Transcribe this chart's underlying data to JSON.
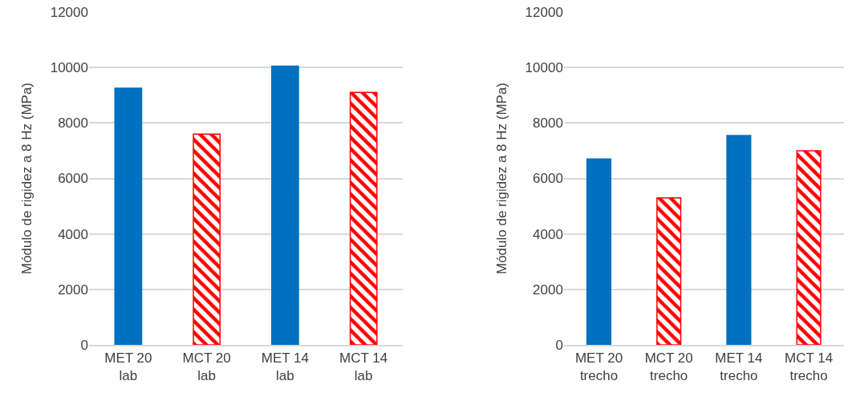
{
  "chart_data": [
    {
      "type": "bar",
      "categories": [
        "MET 20 lab",
        "MCT 20 lab",
        "MET 14 lab",
        "MCT 14 lab"
      ],
      "ylabel": "Módulo de rigidez a 8 Hz (MPa)",
      "ylim": [
        0,
        12000
      ],
      "yticks": [
        0,
        2000,
        4000,
        6000,
        8000,
        10000,
        12000
      ],
      "grid": "y",
      "series": [
        {
          "color": "#0070c0",
          "values": [
            9250,
            null,
            10050,
            null
          ]
        },
        {
          "color": "#ff0000",
          "values": [
            null,
            7600,
            null,
            9100
          ]
        }
      ]
    },
    {
      "type": "bar",
      "categories": [
        "MET 20 trecho",
        "MCT 20 trecho",
        "MET 14 trecho",
        "MCT 14 trecho"
      ],
      "ylabel": "Módulo de rigidez a 8 Hz (MPa)",
      "ylim": [
        0,
        12000
      ],
      "yticks": [
        0,
        2000,
        4000,
        6000,
        8000,
        10000,
        12000
      ],
      "grid": "y",
      "series": [
        {
          "color": "#0070c0",
          "values": [
            6700,
            null,
            7550,
            null
          ]
        },
        {
          "color": "#ff0000",
          "values": [
            null,
            5300,
            null,
            7000
          ]
        }
      ]
    }
  ]
}
